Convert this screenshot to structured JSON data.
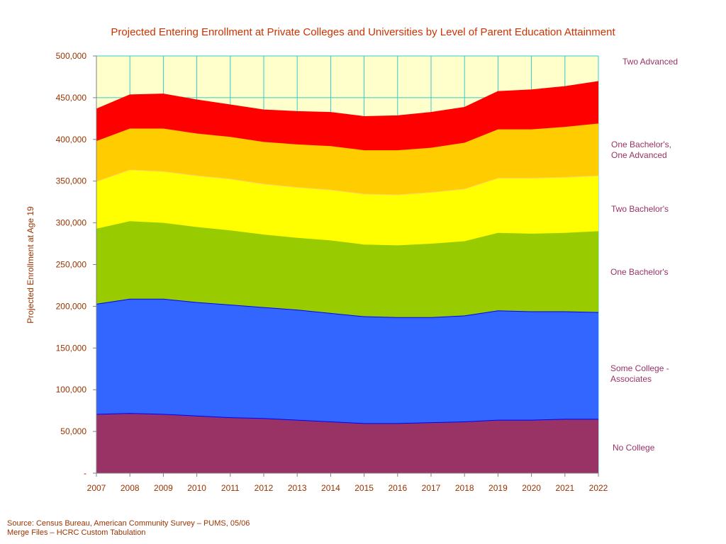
{
  "chart_data": {
    "type": "area",
    "stacked": true,
    "title": "Projected Entering Enrollment at Private Colleges and Universities by Level of Parent Education Attainment",
    "ylabel": "Projected Enrollment at Age 19",
    "xlabel": "",
    "x": [
      "2007",
      "2008",
      "2009",
      "2010",
      "2011",
      "2012",
      "2013",
      "2014",
      "2015",
      "2016",
      "2017",
      "2018",
      "2019",
      "2020",
      "2021",
      "2022"
    ],
    "ylim": [
      0,
      500000
    ],
    "yticks": [
      "-",
      "50,000",
      "100,000",
      "150,000",
      "200,000",
      "250,000",
      "300,000",
      "350,000",
      "400,000",
      "450,000",
      "500,000"
    ],
    "grid": true,
    "legend": "right",
    "series": [
      {
        "name": "No College",
        "color": "#993366",
        "line": "#0000ff",
        "values": [
          71000,
          72000,
          71000,
          69000,
          67000,
          66000,
          64000,
          62000,
          60000,
          60000,
          61000,
          62000,
          64000,
          64000,
          65000,
          65000
        ]
      },
      {
        "name": "Some College - Associates",
        "color": "#3366ff",
        "line": "#0000ff",
        "values": [
          132000,
          137000,
          138000,
          136000,
          135000,
          133000,
          132000,
          130000,
          128000,
          127000,
          126000,
          127000,
          131000,
          130000,
          129000,
          128000
        ]
      },
      {
        "name": "One Bachelor's",
        "color": "#99cc00",
        "line": "#99cc00",
        "values": [
          90000,
          93000,
          91000,
          90000,
          89000,
          87000,
          86000,
          87000,
          86000,
          86000,
          88000,
          89000,
          93000,
          93000,
          94000,
          97000
        ]
      },
      {
        "name": "Two Bachelor's",
        "color": "#ffff00",
        "line": "#ffcc66",
        "values": [
          57000,
          62000,
          62000,
          62000,
          62000,
          61000,
          61000,
          61000,
          61000,
          61000,
          62000,
          63000,
          66000,
          67000,
          67000,
          67000
        ]
      },
      {
        "name": "One Bachelor's, One Advanced",
        "color": "#ffcc00",
        "line": "#ffcc00",
        "values": [
          48000,
          49000,
          51000,
          50000,
          50000,
          50000,
          51000,
          52000,
          52000,
          53000,
          53000,
          55000,
          58000,
          58000,
          60000,
          62000
        ]
      },
      {
        "name": "Two Advanced",
        "color": "#ff0000",
        "line": "#ff0000",
        "values": [
          38000,
          40000,
          41000,
          40000,
          38000,
          38000,
          39000,
          40000,
          40000,
          41000,
          42000,
          42000,
          45000,
          47000,
          48000,
          50000
        ]
      }
    ],
    "legend_labels": [
      {
        "lines": [
          "Two Advanced"
        ]
      },
      {
        "lines": [
          "One Bachelor's,",
          "One Advanced"
        ]
      },
      {
        "lines": [
          "Two Bachelor's"
        ]
      },
      {
        "lines": [
          "One Bachelor's"
        ]
      },
      {
        "lines": [
          "Some College -",
          "Associates"
        ]
      },
      {
        "lines": [
          "No College"
        ]
      }
    ],
    "colors": {
      "text": "#993300",
      "legend_text": "#993366",
      "plot_background": "#ffffcc",
      "grid": "#33cccc",
      "title": "#cc3300"
    }
  },
  "source": {
    "line1": "Source: Census Bureau, American Community Survey – PUMS, 05/06",
    "line2": "Merge Files – HCRC Custom Tabulation"
  }
}
